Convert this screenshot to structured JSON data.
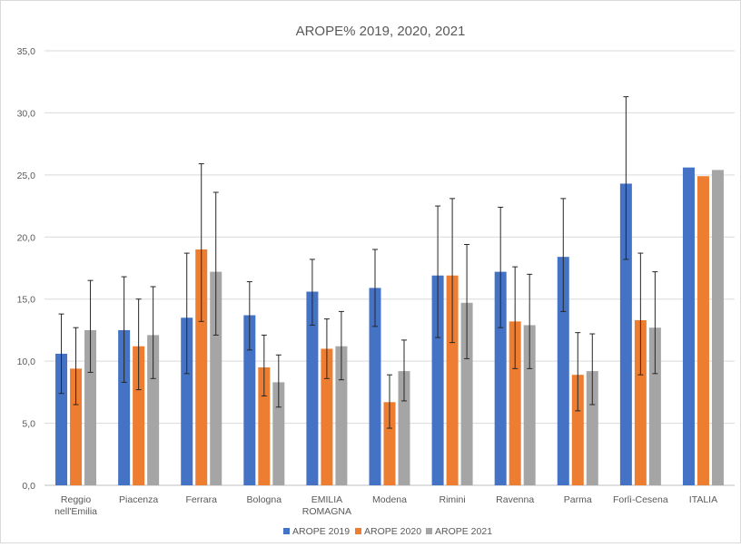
{
  "chart_data": {
    "type": "bar",
    "title": "AROPE% 2019, 2020, 2021",
    "xlabel": "",
    "ylabel": "",
    "ylim": [
      0,
      35
    ],
    "yticks": [
      "0,0",
      "5,0",
      "10,0",
      "15,0",
      "20,0",
      "25,0",
      "30,0",
      "35,0"
    ],
    "grid": true,
    "legend_position": "bottom",
    "error_bars": true,
    "categories": [
      "Reggio nell'Emilia",
      "Piacenza",
      "Ferrara",
      "Bologna",
      "EMILIA ROMAGNA",
      "Modena",
      "Rimini",
      "Ravenna",
      "Parma",
      "Forlì-Cesena",
      "ITALIA"
    ],
    "category_lines": [
      [
        "Reggio",
        "nell'Emilia"
      ],
      [
        "Piacenza"
      ],
      [
        "Ferrara"
      ],
      [
        "Bologna"
      ],
      [
        "EMILIA",
        "ROMAGNA"
      ],
      [
        "Modena"
      ],
      [
        "Rimini"
      ],
      [
        "Ravenna"
      ],
      [
        "Parma"
      ],
      [
        "Forlì-Cesena"
      ],
      [
        "ITALIA"
      ]
    ],
    "series": [
      {
        "name": "AROPE 2019",
        "color": "#4472c4",
        "values": [
          10.6,
          12.5,
          13.5,
          13.7,
          15.6,
          15.9,
          16.9,
          17.2,
          18.4,
          24.3,
          25.6
        ],
        "error_low": [
          7.4,
          8.3,
          9.0,
          10.9,
          12.9,
          12.8,
          11.9,
          12.7,
          14.0,
          18.2,
          null
        ],
        "error_high": [
          13.8,
          16.8,
          18.7,
          16.4,
          18.2,
          19.0,
          22.5,
          22.4,
          23.1,
          31.3,
          null
        ]
      },
      {
        "name": "AROPE 2020",
        "color": "#ed7d31",
        "values": [
          9.4,
          11.2,
          19.0,
          9.5,
          11.0,
          6.7,
          16.9,
          13.2,
          8.9,
          13.3,
          24.9
        ],
        "error_low": [
          6.5,
          7.7,
          13.2,
          7.2,
          8.6,
          4.6,
          11.5,
          9.4,
          6.0,
          8.9,
          null
        ],
        "error_high": [
          12.7,
          15.0,
          25.9,
          12.1,
          13.4,
          8.9,
          23.1,
          17.6,
          12.3,
          18.7,
          null
        ]
      },
      {
        "name": "AROPE 2021",
        "color": "#a5a5a5",
        "values": [
          12.5,
          12.1,
          17.2,
          8.3,
          11.2,
          9.2,
          14.7,
          12.9,
          9.2,
          12.7,
          25.4
        ],
        "error_low": [
          9.1,
          8.6,
          12.1,
          6.3,
          8.5,
          6.8,
          10.2,
          9.4,
          6.5,
          9.0,
          null
        ],
        "error_high": [
          16.5,
          16.0,
          23.6,
          10.5,
          14.0,
          11.7,
          19.4,
          17.0,
          12.2,
          17.2,
          null
        ]
      }
    ]
  }
}
